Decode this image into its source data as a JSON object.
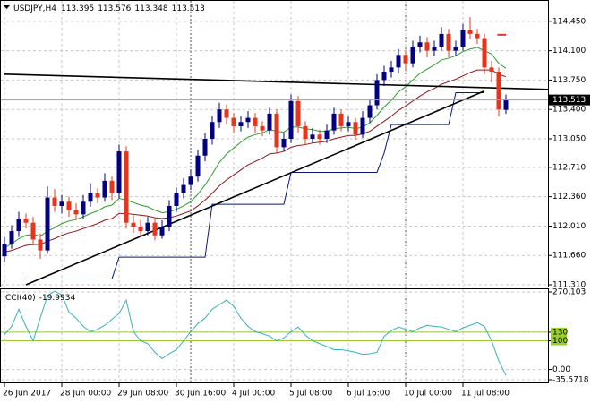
{
  "chart_data": [
    {
      "type": "candlestick",
      "title": "USDJPY,H4",
      "categories": [
        "26 Jun 2017",
        null,
        null,
        null,
        null,
        null,
        null,
        null,
        "28 Jun 00:00",
        null,
        null,
        null,
        null,
        null,
        null,
        null,
        "29 Jun 08:00",
        null,
        null,
        null,
        null,
        null,
        null,
        null,
        "30 Jun 16:00",
        null,
        null,
        null,
        null,
        null,
        null,
        null,
        "4 Jul 00:00",
        null,
        null,
        null,
        null,
        null,
        null,
        null,
        "5 Jul 08:00",
        null,
        null,
        null,
        null,
        null,
        null,
        null,
        "6 Jul 16:00",
        null,
        null,
        null,
        null,
        null,
        null,
        null,
        "10 Jul 00:00",
        null,
        null,
        null,
        null,
        null,
        null,
        null,
        "11 Jul 08:00",
        null,
        null,
        null,
        null,
        null,
        null
      ],
      "open": [
        111.65,
        111.8,
        111.95,
        112.1,
        112.05,
        111.85,
        111.72,
        112.35,
        112.25,
        112.3,
        112.2,
        112.15,
        112.3,
        112.4,
        112.35,
        112.55,
        112.4,
        112.9,
        112.05,
        112.0,
        111.95,
        112.05,
        111.9,
        112.0,
        112.25,
        112.4,
        112.5,
        112.6,
        112.85,
        113.05,
        113.25,
        113.4,
        113.3,
        113.2,
        113.25,
        113.3,
        113.2,
        113.15,
        113.35,
        112.95,
        113.05,
        113.5,
        113.2,
        113.05,
        113.1,
        113.05,
        113.15,
        113.35,
        113.2,
        113.25,
        113.1,
        113.3,
        113.45,
        113.75,
        113.85,
        113.9,
        114.05,
        113.95,
        114.15,
        114.2,
        114.1,
        114.15,
        114.3,
        114.1,
        114.15,
        114.35,
        114.3,
        114.25,
        113.9,
        113.85,
        113.395
      ],
      "high": [
        111.88,
        112.02,
        112.18,
        112.16,
        112.12,
        111.92,
        112.48,
        112.45,
        112.38,
        112.36,
        112.28,
        112.38,
        112.52,
        112.46,
        112.64,
        112.6,
        112.98,
        112.96,
        112.14,
        112.08,
        112.12,
        112.1,
        112.08,
        112.32,
        112.47,
        112.58,
        112.68,
        112.92,
        113.12,
        113.32,
        113.48,
        113.46,
        113.36,
        113.32,
        113.38,
        113.36,
        113.26,
        113.42,
        113.4,
        113.12,
        113.58,
        113.56,
        113.26,
        113.18,
        113.16,
        113.22,
        113.42,
        113.4,
        113.32,
        113.3,
        113.38,
        113.52,
        113.82,
        113.92,
        113.98,
        114.12,
        114.1,
        114.22,
        114.28,
        114.26,
        114.22,
        114.38,
        114.36,
        114.22,
        114.42,
        114.5,
        114.36,
        114.3,
        113.98,
        113.9,
        113.576
      ],
      "low": [
        111.58,
        111.74,
        111.88,
        111.98,
        111.78,
        111.62,
        111.68,
        112.18,
        112.16,
        112.12,
        112.08,
        112.1,
        112.24,
        112.28,
        112.3,
        112.32,
        112.34,
        111.98,
        111.93,
        111.88,
        111.9,
        111.84,
        111.86,
        111.95,
        112.18,
        112.34,
        112.44,
        112.54,
        112.78,
        112.98,
        113.18,
        113.22,
        113.12,
        113.14,
        113.18,
        113.12,
        113.08,
        113.1,
        112.88,
        112.9,
        113.0,
        113.12,
        112.98,
        113.0,
        112.98,
        113.0,
        113.1,
        113.14,
        113.14,
        113.04,
        113.06,
        113.24,
        113.4,
        113.68,
        113.78,
        113.84,
        113.88,
        113.9,
        114.08,
        114.02,
        114.04,
        114.1,
        114.02,
        114.04,
        114.1,
        114.24,
        114.18,
        113.82,
        113.72,
        113.32,
        113.348
      ],
      "close": [
        111.8,
        111.95,
        112.1,
        112.05,
        111.85,
        111.72,
        112.35,
        112.25,
        112.3,
        112.2,
        112.15,
        112.3,
        112.4,
        112.35,
        112.55,
        112.4,
        112.9,
        112.05,
        112.0,
        111.95,
        112.05,
        111.9,
        112.0,
        112.25,
        112.4,
        112.5,
        112.6,
        112.85,
        113.05,
        113.25,
        113.4,
        113.3,
        113.2,
        113.25,
        113.3,
        113.2,
        113.15,
        113.35,
        112.95,
        113.05,
        113.5,
        113.2,
        113.05,
        113.1,
        113.05,
        113.15,
        113.35,
        113.2,
        113.25,
        113.1,
        113.3,
        113.45,
        113.75,
        113.85,
        113.9,
        114.05,
        113.95,
        114.15,
        114.2,
        114.1,
        114.15,
        114.3,
        114.1,
        114.15,
        114.35,
        114.3,
        114.25,
        113.9,
        113.85,
        113.4,
        113.513
      ],
      "up_color": "#000080",
      "down_color": "#e8341c",
      "series": [
        {
          "color": "#2e9b2e",
          "values": [
            111.75,
            111.8,
            111.86,
            111.9,
            111.91,
            111.89,
            111.95,
            111.99,
            112.04,
            112.07,
            112.09,
            112.12,
            112.16,
            112.19,
            112.24,
            112.26,
            112.34,
            112.32,
            112.29,
            112.26,
            112.24,
            112.2,
            112.17,
            112.18,
            112.21,
            112.25,
            112.3,
            112.39,
            112.5,
            112.63,
            112.77,
            112.87,
            112.94,
            113.01,
            113.07,
            113.1,
            113.12,
            113.16,
            113.14,
            113.13,
            113.19,
            113.19,
            113.17,
            113.16,
            113.14,
            113.14,
            113.17,
            113.18,
            113.19,
            113.17,
            113.19,
            113.24,
            113.33,
            113.43,
            113.51,
            113.61,
            113.67,
            113.75,
            113.83,
            113.88,
            113.93,
            113.99,
            114.01,
            114.04,
            114.09,
            114.12,
            114.14,
            114.1,
            114.06,
            113.95,
            113.89
          ]
        },
        {
          "color": "#8b1a1a",
          "values": [
            111.7,
            111.72,
            111.75,
            111.78,
            111.79,
            111.79,
            111.83,
            111.86,
            111.9,
            111.93,
            111.95,
            111.98,
            112.01,
            112.04,
            112.08,
            112.1,
            112.16,
            112.16,
            112.15,
            112.14,
            112.13,
            112.11,
            112.1,
            112.11,
            112.13,
            112.16,
            112.19,
            112.25,
            112.32,
            112.4,
            112.49,
            112.56,
            112.62,
            112.68,
            112.74,
            112.78,
            112.82,
            112.87,
            112.88,
            112.9,
            112.95,
            112.97,
            112.98,
            113.0,
            113.01,
            113.02,
            113.05,
            113.07,
            113.09,
            113.09,
            113.11,
            113.14,
            113.2,
            113.26,
            113.32,
            113.39,
            113.44,
            113.5,
            113.56,
            113.61,
            113.65,
            113.7,
            113.73,
            113.76,
            113.8,
            113.84,
            113.87,
            113.87,
            113.87,
            113.82,
            113.79
          ]
        },
        {
          "color": "#0a1a7a",
          "values": [
            null,
            null,
            null,
            111.38,
            111.38,
            111.38,
            111.38,
            111.38,
            111.38,
            111.38,
            111.38,
            111.38,
            111.38,
            111.38,
            111.38,
            111.38,
            111.64,
            111.64,
            111.64,
            111.64,
            111.64,
            111.64,
            111.64,
            111.64,
            111.64,
            111.64,
            111.64,
            111.64,
            111.64,
            112.27,
            112.27,
            112.27,
            112.27,
            112.27,
            112.27,
            112.27,
            112.27,
            112.27,
            112.27,
            112.27,
            112.65,
            112.65,
            112.65,
            112.65,
            112.65,
            112.65,
            112.65,
            112.65,
            112.65,
            112.65,
            112.65,
            112.65,
            112.65,
            112.88,
            113.22,
            113.22,
            113.22,
            113.22,
            113.22,
            113.22,
            113.22,
            113.22,
            113.22,
            113.6,
            113.6,
            113.6,
            113.6,
            113.6,
            null,
            null,
            null
          ]
        }
      ],
      "trendlines": [
        {
          "x": [
            3,
            67
          ],
          "y": [
            111.31,
            113.62
          ],
          "color": "#000000"
        },
        {
          "x": [
            0,
            67
          ],
          "y": [
            113.82,
            113.66
          ],
          "color": "#000000",
          "ray": true
        }
      ],
      "order_level": 114.29,
      "order_color": "#e8341c",
      "ylim": [
        111.289,
        114.683
      ],
      "yticks": [
        {
          "value": 114.45,
          "label": "114.450"
        },
        {
          "value": 114.1,
          "label": "114.100"
        },
        {
          "value": 113.75,
          "label": "113.750"
        },
        {
          "value": 113.4,
          "label": "113.400"
        },
        {
          "value": 113.05,
          "label": "113.050"
        },
        {
          "value": 112.71,
          "label": "112.710"
        },
        {
          "value": 112.36,
          "label": "112.360"
        },
        {
          "value": 112.01,
          "label": "112.010"
        },
        {
          "value": 111.66,
          "label": "111.660"
        },
        {
          "value": 111.31,
          "label": "111.310"
        }
      ],
      "grid": true
    },
    {
      "type": "line",
      "title": "CCI(40)",
      "color": "#3ab0c0",
      "values": [
        122,
        150,
        210,
        150,
        100,
        180,
        257,
        273,
        260,
        200,
        179,
        150,
        132,
        140,
        154,
        175,
        195,
        242,
        132,
        100,
        90,
        60,
        38,
        55,
        69,
        100,
        132,
        160,
        179,
        210,
        226,
        242,
        220,
        179,
        150,
        132,
        125,
        116,
        100,
        110,
        132,
        148,
        120,
        100,
        90,
        80,
        69,
        69,
        65,
        60,
        53,
        55,
        60,
        116,
        135,
        148,
        140,
        132,
        145,
        154,
        150,
        148,
        140,
        132,
        145,
        154,
        163,
        150,
        100,
        30,
        -19.9934
      ],
      "levels": [
        130,
        100
      ],
      "level_color": "#9acd32",
      "ylim": [
        -35.5718,
        270.103
      ],
      "yticks": [
        270.103,
        130,
        100,
        {
          "value": 0,
          "label": "0.00"
        },
        -35.5718
      ],
      "grid": true
    }
  ]
}
